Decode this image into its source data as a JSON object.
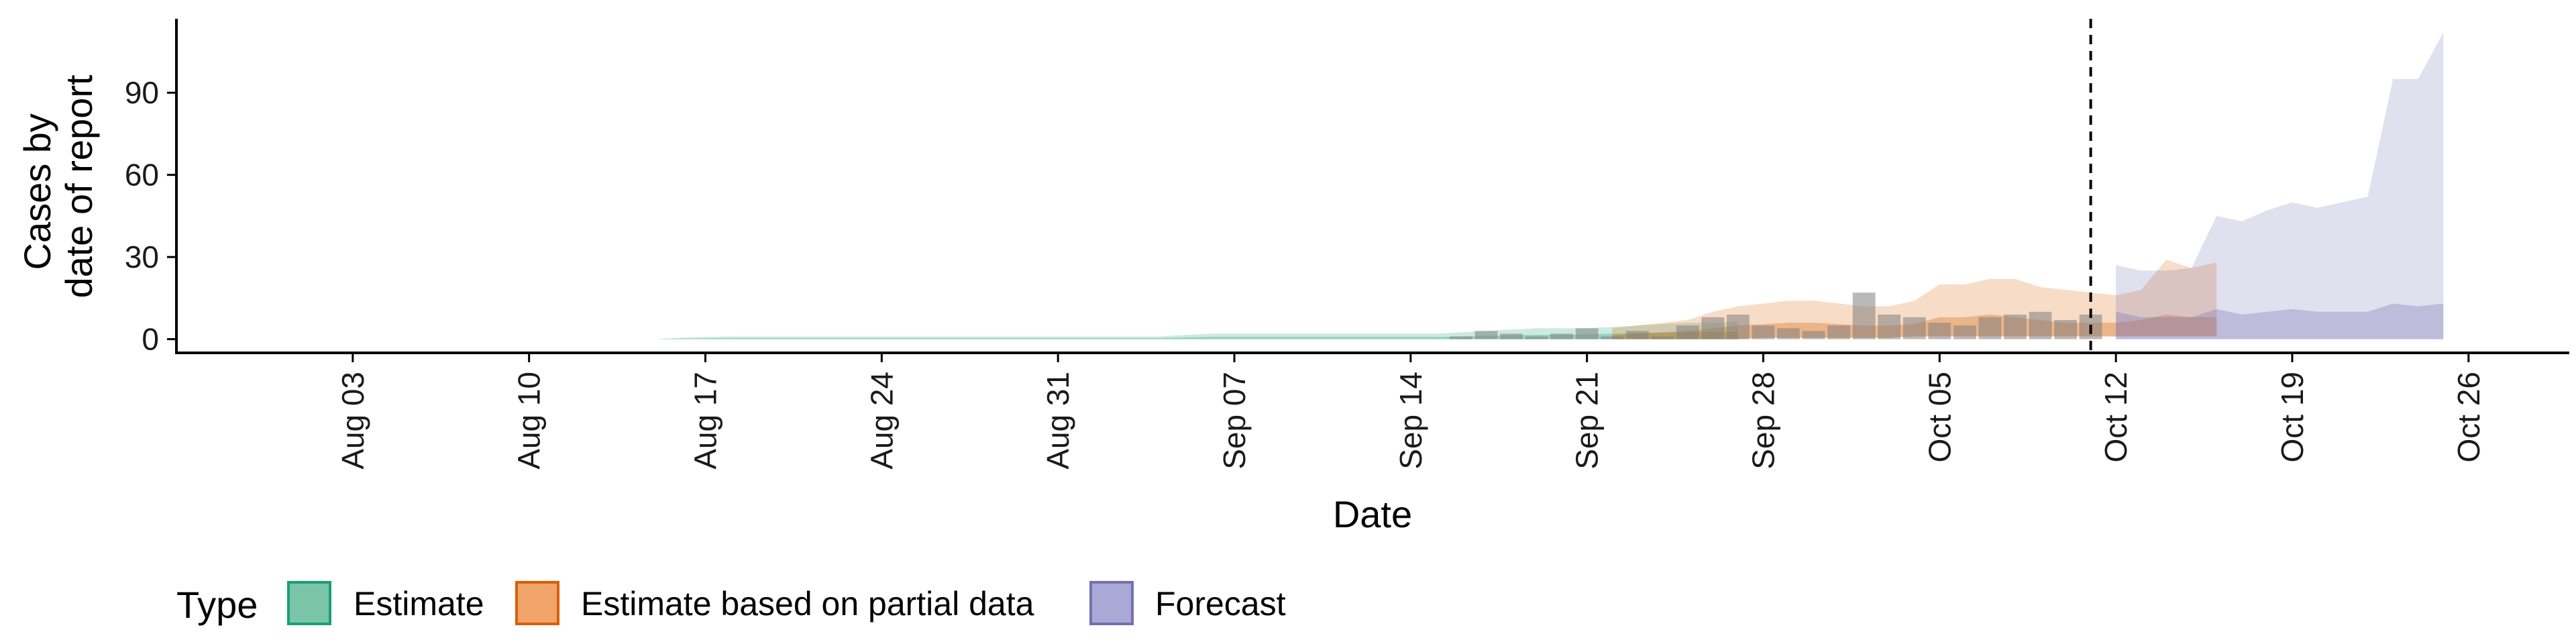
{
  "chart_data": {
    "type": "area",
    "xlabel": "Date",
    "ylabel_lines": [
      "Cases by",
      "date of report"
    ],
    "x_ticks": [
      "2020-08-03",
      "2020-08-10",
      "2020-08-17",
      "2020-08-24",
      "2020-08-31",
      "2020-09-07",
      "2020-09-14",
      "2020-09-21",
      "2020-09-28",
      "2020-10-05",
      "2020-10-12",
      "2020-10-19",
      "2020-10-26"
    ],
    "x_tick_labels": [
      "Aug 03",
      "Aug 10",
      "Aug 17",
      "Aug 24",
      "Aug 31",
      "Sep 07",
      "Sep 14",
      "Sep 21",
      "Sep 28",
      "Oct 05",
      "Oct 12",
      "Oct 19",
      "Oct 26"
    ],
    "y_ticks": [
      0,
      30,
      60,
      90
    ],
    "y_tick_labels": [
      "0",
      "30",
      "60",
      "90"
    ],
    "xlim": [
      "2020-07-27",
      "2020-10-30"
    ],
    "ylim": [
      -5,
      117
    ],
    "vline_date": "2020-10-11",
    "grid": false,
    "legend": {
      "position": "bottom",
      "title": "Type",
      "items": [
        {
          "label": "Estimate",
          "fill": "#7ac4a8",
          "stroke": "#1b9e77"
        },
        {
          "label": "Estimate based on partial data",
          "fill": "#f0a46a",
          "stroke": "#d95f02"
        },
        {
          "label": "Forecast",
          "fill": "#aaa8d4",
          "stroke": "#7570b3"
        }
      ]
    },
    "colors": {
      "estimate": "#1b9e77",
      "partial": "#d95f02",
      "forecast": "#7570b3",
      "observed": "#808080"
    },
    "series": [
      {
        "type": "Estimate",
        "start": "2020-08-02",
        "upper90": [
          0,
          0,
          0,
          0,
          0,
          0,
          0,
          0,
          0,
          0,
          0,
          0,
          0,
          0,
          0.5,
          0.8,
          1,
          1,
          1,
          1,
          1,
          1,
          1,
          1,
          1,
          1,
          1,
          1,
          1,
          1,
          1,
          1,
          1,
          1,
          1.5,
          2,
          2,
          2,
          2,
          2,
          2,
          2,
          2,
          2,
          2,
          2.5,
          3,
          3.5,
          4,
          4,
          4,
          4.5,
          5,
          5.5,
          6,
          6,
          6.5
        ],
        "upper50": [
          0,
          0,
          0,
          0,
          0,
          0,
          0,
          0,
          0,
          0,
          0,
          0,
          0,
          0,
          0.2,
          0.3,
          0.4,
          0.4,
          0.4,
          0.4,
          0.4,
          0.4,
          0.4,
          0.4,
          0.4,
          0.4,
          0.4,
          0.4,
          0.4,
          0.4,
          0.4,
          0.4,
          0.4,
          0.4,
          0.6,
          0.8,
          0.8,
          0.8,
          0.8,
          0.8,
          0.8,
          0.8,
          0.8,
          0.8,
          0.8,
          1,
          1.2,
          1.4,
          1.6,
          1.6,
          1.8,
          2,
          2.2,
          2.4,
          2.6,
          2.6,
          2.8
        ],
        "lower": [
          0,
          0,
          0,
          0,
          0,
          0,
          0,
          0,
          0,
          0,
          0,
          0,
          0,
          0,
          0,
          0,
          0,
          0,
          0,
          0,
          0,
          0,
          0,
          0,
          0,
          0,
          0,
          0,
          0,
          0,
          0,
          0,
          0,
          0,
          0,
          0,
          0,
          0,
          0,
          0,
          0,
          0,
          0,
          0,
          0,
          0,
          0,
          0,
          0,
          0,
          0,
          0,
          0,
          0,
          0,
          0,
          0
        ]
      },
      {
        "type": "Estimate based on partial data",
        "start": "2020-09-22",
        "upper90": [
          4,
          5,
          6,
          7,
          10,
          12,
          13,
          14,
          14,
          13,
          12,
          12,
          14,
          20,
          20,
          22,
          22,
          19,
          18,
          17,
          16,
          18,
          29,
          26,
          28
        ],
        "upper50": [
          1.5,
          2,
          2.5,
          3,
          4,
          5,
          5.5,
          6,
          6,
          5.5,
          5,
          5,
          5.5,
          8,
          8,
          9,
          8,
          7,
          6,
          6,
          6,
          7,
          9,
          8,
          8
        ],
        "lower": [
          0,
          0,
          0,
          0,
          0,
          0,
          0.5,
          0.5,
          0.5,
          0.5,
          0.5,
          0.5,
          1,
          1,
          1,
          1,
          1,
          1,
          1,
          1,
          1,
          1,
          1,
          1,
          1
        ]
      },
      {
        "type": "Forecast",
        "start": "2020-10-12",
        "upper90": [
          27,
          25,
          25,
          26,
          45,
          43,
          47,
          50,
          48,
          50,
          52,
          95,
          95,
          112
        ],
        "upper50": [
          10,
          8,
          8,
          8,
          11,
          9,
          10,
          11,
          10,
          10,
          10,
          13,
          12,
          13
        ],
        "lower": [
          0,
          0,
          0,
          0,
          0,
          0,
          0,
          0,
          0,
          0,
          0,
          0,
          0,
          0
        ]
      }
    ],
    "observed": {
      "dates": [
        "2020-09-16",
        "2020-09-17",
        "2020-09-18",
        "2020-09-19",
        "2020-09-20",
        "2020-09-21",
        "2020-09-22",
        "2020-09-23",
        "2020-09-24",
        "2020-09-25",
        "2020-09-26",
        "2020-09-27",
        "2020-09-28",
        "2020-09-29",
        "2020-09-30",
        "2020-10-01",
        "2020-10-02",
        "2020-10-03",
        "2020-10-04",
        "2020-10-05",
        "2020-10-06",
        "2020-10-07",
        "2020-10-08",
        "2020-10-09",
        "2020-10-10",
        "2020-10-11"
      ],
      "values": [
        1,
        3,
        2,
        1,
        2,
        4,
        1,
        3,
        1,
        5,
        8,
        9,
        5,
        4,
        3,
        5,
        17,
        9,
        8,
        6,
        5,
        8,
        9,
        10,
        7,
        9
      ]
    }
  }
}
